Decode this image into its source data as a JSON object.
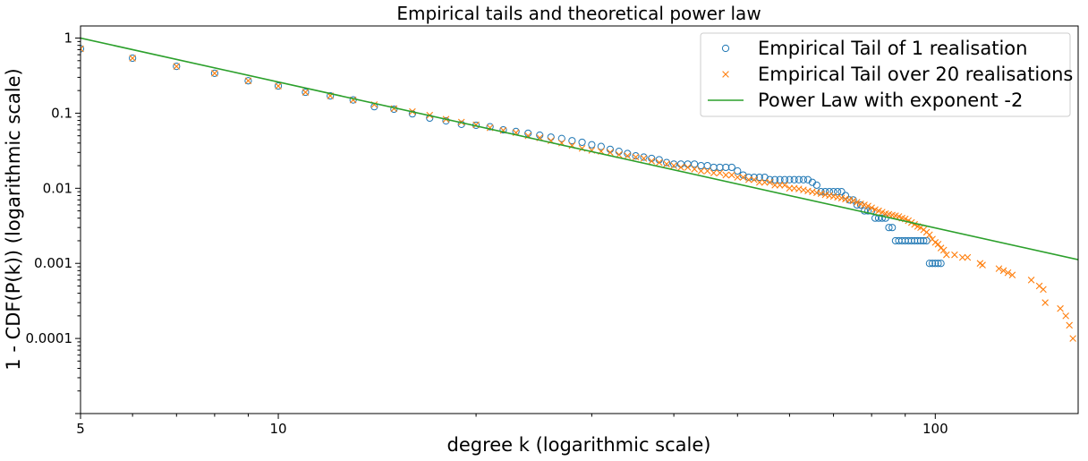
{
  "chart_data": {
    "type": "scatter",
    "title": "Empirical tails and theoretical power law",
    "xlabel": "degree k (logarithmic scale)",
    "ylabel": "1 - CDF(P(k)) (logarithmic scale)",
    "x_scale": "log",
    "y_scale": "log",
    "xlim": [
      5,
      165
    ],
    "ylim": [
      1e-05,
      1.45
    ],
    "grid": false,
    "legend_position": "top-right",
    "x_ticks": [
      {
        "value": 5,
        "label": "5"
      },
      {
        "value": 10,
        "label": "10"
      },
      {
        "value": 100,
        "label": "100"
      }
    ],
    "y_ticks": [
      {
        "value": 1,
        "label": "1"
      },
      {
        "value": 0.1,
        "label": "0.1"
      },
      {
        "value": 0.01,
        "label": "0.01"
      },
      {
        "value": 0.001,
        "label": "0.001"
      },
      {
        "value": 0.0001,
        "label": "0.0001"
      }
    ],
    "series": [
      {
        "name": "Empirical Tail of 1 realisation",
        "marker": "circle",
        "color": "#1f77b4",
        "points": [
          [
            5,
            0.72
          ],
          [
            6,
            0.54
          ],
          [
            7,
            0.42
          ],
          [
            8,
            0.34
          ],
          [
            9,
            0.27
          ],
          [
            10,
            0.23
          ],
          [
            11,
            0.19
          ],
          [
            12,
            0.17
          ],
          [
            13,
            0.15
          ],
          [
            14,
            0.122
          ],
          [
            15,
            0.113
          ],
          [
            16,
            0.098
          ],
          [
            17,
            0.086
          ],
          [
            18,
            0.079
          ],
          [
            19,
            0.071
          ],
          [
            20,
            0.069
          ],
          [
            21,
            0.066
          ],
          [
            22,
            0.06
          ],
          [
            23,
            0.057
          ],
          [
            24,
            0.054
          ],
          [
            25,
            0.051
          ],
          [
            26,
            0.048
          ],
          [
            27,
            0.046
          ],
          [
            28,
            0.043
          ],
          [
            29,
            0.041
          ],
          [
            30,
            0.038
          ],
          [
            31,
            0.036
          ],
          [
            32,
            0.033
          ],
          [
            33,
            0.031
          ],
          [
            34,
            0.029
          ],
          [
            35,
            0.027
          ],
          [
            36,
            0.026
          ],
          [
            37,
            0.025
          ],
          [
            38,
            0.024
          ],
          [
            39,
            0.022
          ],
          [
            40,
            0.021
          ],
          [
            41,
            0.021
          ],
          [
            42,
            0.021
          ],
          [
            43,
            0.021
          ],
          [
            44,
            0.02
          ],
          [
            45,
            0.02
          ],
          [
            46,
            0.019
          ],
          [
            47,
            0.019
          ],
          [
            48,
            0.019
          ],
          [
            49,
            0.019
          ],
          [
            50,
            0.017
          ],
          [
            51,
            0.015
          ],
          [
            52,
            0.014
          ],
          [
            53,
            0.014
          ],
          [
            54,
            0.014
          ],
          [
            55,
            0.014
          ],
          [
            56,
            0.013
          ],
          [
            57,
            0.013
          ],
          [
            58,
            0.013
          ],
          [
            59,
            0.013
          ],
          [
            60,
            0.013
          ],
          [
            61,
            0.013
          ],
          [
            62,
            0.013
          ],
          [
            63,
            0.013
          ],
          [
            64,
            0.013
          ],
          [
            65,
            0.012
          ],
          [
            66,
            0.011
          ],
          [
            67,
            0.009
          ],
          [
            68,
            0.009
          ],
          [
            69,
            0.009
          ],
          [
            70,
            0.009
          ],
          [
            71,
            0.009
          ],
          [
            72,
            0.009
          ],
          [
            73,
            0.008
          ],
          [
            74,
            0.007
          ],
          [
            75,
            0.007
          ],
          [
            76,
            0.006
          ],
          [
            77,
            0.006
          ],
          [
            78,
            0.005
          ],
          [
            79,
            0.005
          ],
          [
            80,
            0.005
          ],
          [
            81,
            0.004
          ],
          [
            82,
            0.004
          ],
          [
            83,
            0.004
          ],
          [
            84,
            0.004
          ],
          [
            85,
            0.003
          ],
          [
            86,
            0.003
          ],
          [
            87,
            0.002
          ],
          [
            88,
            0.002
          ],
          [
            89,
            0.002
          ],
          [
            90,
            0.002
          ],
          [
            91,
            0.002
          ],
          [
            92,
            0.002
          ],
          [
            93,
            0.002
          ],
          [
            94,
            0.002
          ],
          [
            95,
            0.002
          ],
          [
            96,
            0.002
          ],
          [
            97,
            0.002
          ],
          [
            98,
            0.001
          ],
          [
            99,
            0.001
          ],
          [
            100,
            0.001
          ],
          [
            101,
            0.001
          ],
          [
            102,
            0.001
          ]
        ]
      },
      {
        "name": "Empirical Tail over 20 realisations",
        "marker": "x",
        "color": "#ff7f0e",
        "points": [
          [
            5,
            0.72
          ],
          [
            6,
            0.54
          ],
          [
            7,
            0.42
          ],
          [
            8,
            0.34
          ],
          [
            9,
            0.27
          ],
          [
            10,
            0.23
          ],
          [
            11,
            0.19
          ],
          [
            12,
            0.17
          ],
          [
            13,
            0.15
          ],
          [
            14,
            0.13
          ],
          [
            15,
            0.115
          ],
          [
            16,
            0.105
          ],
          [
            17,
            0.094
          ],
          [
            18,
            0.083
          ],
          [
            19,
            0.076
          ],
          [
            20,
            0.07
          ],
          [
            21,
            0.064
          ],
          [
            22,
            0.059
          ],
          [
            23,
            0.055
          ],
          [
            24,
            0.05
          ],
          [
            25,
            0.047
          ],
          [
            26,
            0.043
          ],
          [
            27,
            0.04
          ],
          [
            28,
            0.037
          ],
          [
            29,
            0.034
          ],
          [
            30,
            0.032
          ],
          [
            31,
            0.031
          ],
          [
            32,
            0.03
          ],
          [
            33,
            0.028
          ],
          [
            34,
            0.027
          ],
          [
            35,
            0.026
          ],
          [
            36,
            0.025
          ],
          [
            37,
            0.023
          ],
          [
            38,
            0.022
          ],
          [
            39,
            0.021
          ],
          [
            40,
            0.02
          ],
          [
            41,
            0.019
          ],
          [
            42,
            0.019
          ],
          [
            43,
            0.018
          ],
          [
            44,
            0.017
          ],
          [
            45,
            0.017
          ],
          [
            46,
            0.016
          ],
          [
            47,
            0.016
          ],
          [
            48,
            0.015
          ],
          [
            49,
            0.015
          ],
          [
            50,
            0.014
          ],
          [
            51,
            0.014
          ],
          [
            52,
            0.013
          ],
          [
            53,
            0.013
          ],
          [
            54,
            0.012
          ],
          [
            55,
            0.012
          ],
          [
            56,
            0.012
          ],
          [
            57,
            0.011
          ],
          [
            58,
            0.011
          ],
          [
            59,
            0.011
          ],
          [
            60,
            0.01
          ],
          [
            61,
            0.01
          ],
          [
            62,
            0.0098
          ],
          [
            63,
            0.0095
          ],
          [
            64,
            0.0092
          ],
          [
            65,
            0.009
          ],
          [
            66,
            0.0087
          ],
          [
            67,
            0.0085
          ],
          [
            68,
            0.0082
          ],
          [
            69,
            0.008
          ],
          [
            70,
            0.0078
          ],
          [
            71,
            0.0076
          ],
          [
            72,
            0.0074
          ],
          [
            73,
            0.0072
          ],
          [
            74,
            0.007
          ],
          [
            75,
            0.0068
          ],
          [
            76,
            0.0065
          ],
          [
            77,
            0.0062
          ],
          [
            78,
            0.006
          ],
          [
            79,
            0.0058
          ],
          [
            80,
            0.0055
          ],
          [
            81,
            0.0052
          ],
          [
            82,
            0.005
          ],
          [
            83,
            0.0048
          ],
          [
            84,
            0.0046
          ],
          [
            85,
            0.0045
          ],
          [
            86,
            0.0044
          ],
          [
            87,
            0.0043
          ],
          [
            88,
            0.0042
          ],
          [
            89,
            0.004
          ],
          [
            90,
            0.0039
          ],
          [
            91,
            0.0037
          ],
          [
            92,
            0.0035
          ],
          [
            93,
            0.0033
          ],
          [
            94,
            0.0031
          ],
          [
            95,
            0.003
          ],
          [
            96,
            0.0028
          ],
          [
            97,
            0.0026
          ],
          [
            98,
            0.0024
          ],
          [
            99,
            0.0021
          ],
          [
            100,
            0.0019
          ],
          [
            101,
            0.0018
          ],
          [
            102,
            0.0016
          ],
          [
            103,
            0.0015
          ],
          [
            104,
            0.0013
          ],
          [
            107,
            0.0013
          ],
          [
            110,
            0.0012
          ],
          [
            112,
            0.0012
          ],
          [
            117,
            0.001
          ],
          [
            118,
            0.00095
          ],
          [
            125,
            0.00085
          ],
          [
            127,
            0.0008
          ],
          [
            129,
            0.00075
          ],
          [
            131,
            0.0007
          ],
          [
            140,
            0.0006
          ],
          [
            144,
            0.0005
          ],
          [
            146,
            0.00045
          ],
          [
            147,
            0.0003
          ],
          [
            155,
            0.00025
          ],
          [
            158,
            0.0002
          ],
          [
            160,
            0.00015
          ],
          [
            162,
            0.0001
          ]
        ]
      },
      {
        "name": "Power Law with exponent -2",
        "marker": "line",
        "color": "#2ca02c",
        "points": [
          [
            5,
            1.0
          ],
          [
            165,
            0.00112
          ]
        ]
      }
    ]
  }
}
